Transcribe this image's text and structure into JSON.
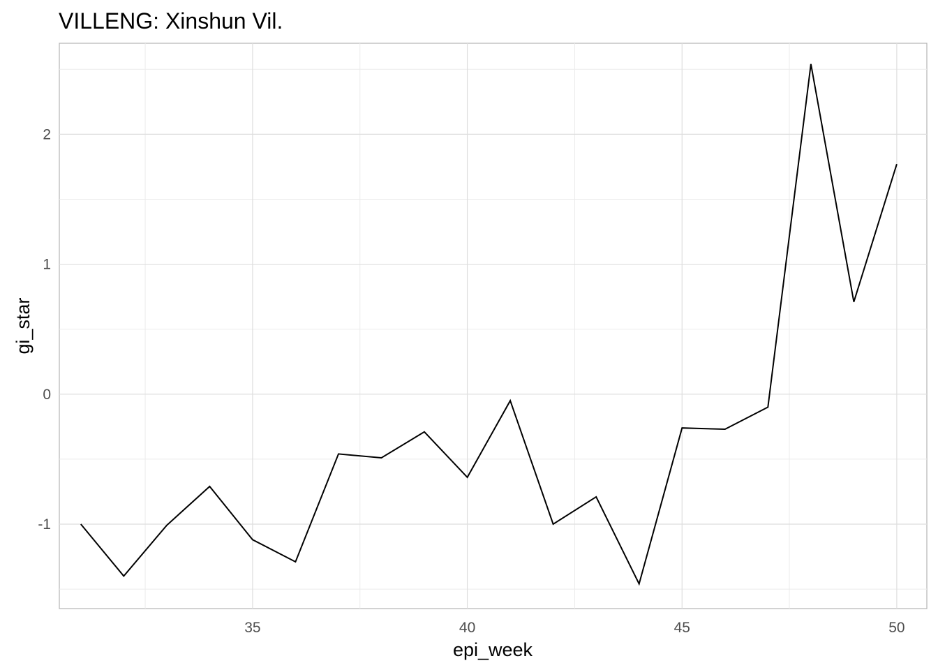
{
  "chart_data": {
    "type": "line",
    "title": "VILLENG: Xinshun Vil.",
    "xlabel": "epi_week",
    "ylabel": "gi_star",
    "xlim": [
      30.5,
      50.7
    ],
    "ylim": [
      -1.65,
      2.7
    ],
    "x_ticks": [
      35,
      40,
      45,
      50
    ],
    "y_ticks": [
      -1,
      0,
      1,
      2
    ],
    "x_tick_labels": [
      "35",
      "40",
      "45",
      "50"
    ],
    "y_tick_labels": [
      "-1",
      "0",
      "1",
      "2"
    ],
    "grid": true,
    "line_color": "#000000",
    "series": [
      {
        "x": [
          31,
          32,
          33,
          34,
          35,
          36,
          37,
          38,
          39,
          40,
          41,
          42,
          43,
          44,
          45,
          46,
          47,
          48,
          49,
          50
        ],
        "values": [
          -1.0,
          -1.4,
          -1.01,
          -0.71,
          -1.12,
          -1.29,
          -0.46,
          -0.49,
          -0.29,
          -0.64,
          -0.05,
          -1.0,
          -0.79,
          -1.46,
          -0.26,
          -0.27,
          -0.1,
          2.54,
          0.71,
          1.77
        ]
      }
    ]
  }
}
